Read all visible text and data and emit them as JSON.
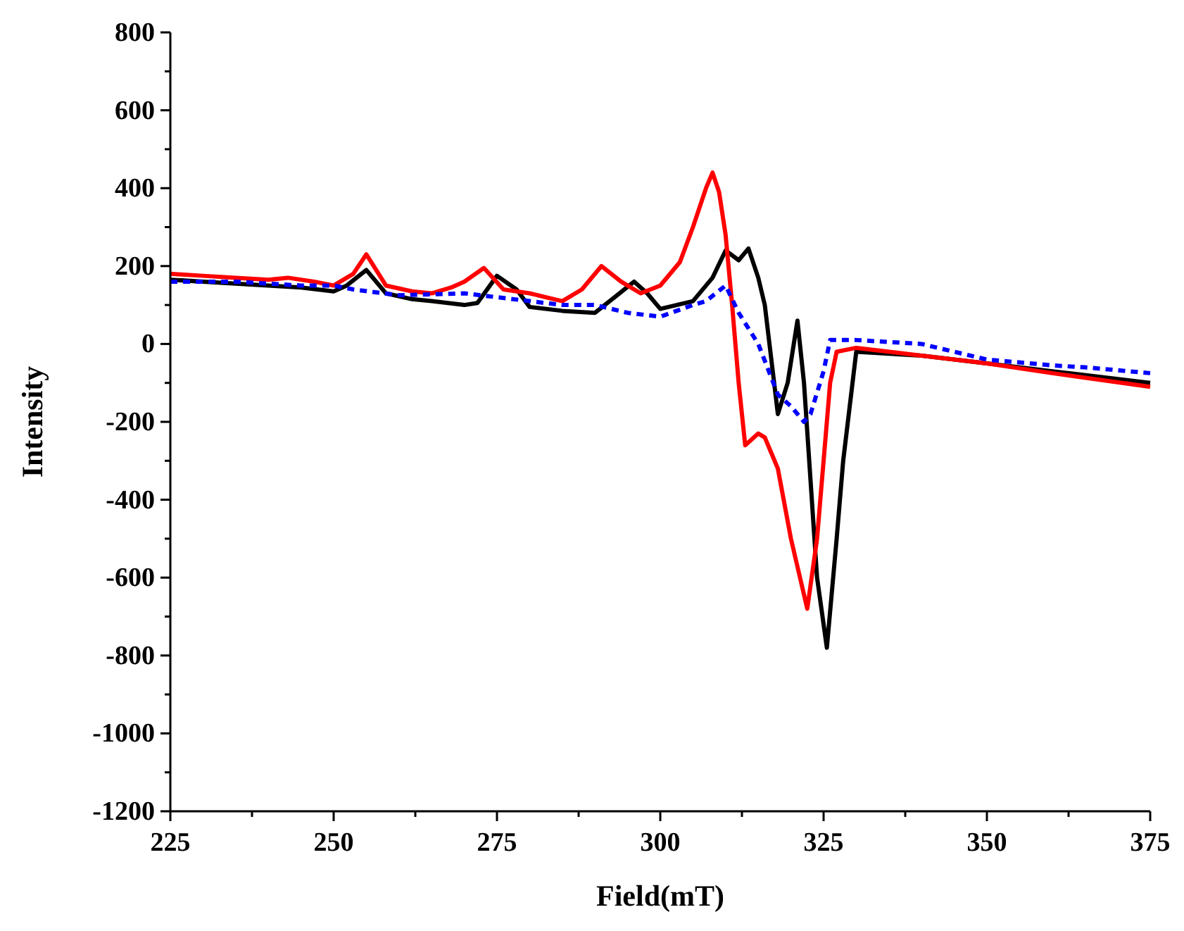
{
  "chart_data": {
    "type": "line",
    "xlabel": "Field(mT)",
    "ylabel": "Intensity",
    "xlim": [
      225,
      375
    ],
    "ylim": [
      -1200,
      800
    ],
    "xticks": [
      225,
      250,
      275,
      300,
      325,
      350,
      375
    ],
    "yticks": [
      -1200,
      -1000,
      -800,
      -600,
      -400,
      -200,
      0,
      200,
      400,
      600,
      800
    ],
    "grid": false,
    "marker": "none",
    "series": [
      {
        "color": "#000000",
        "line_style": "solid",
        "x": [
          225,
          235,
          245,
          250,
          252,
          255,
          258,
          262,
          265,
          270,
          272,
          275,
          278,
          280,
          285,
          290,
          293,
          296,
          298,
          300,
          305,
          308,
          310,
          312,
          313.5,
          315,
          316,
          318,
          319.5,
          321,
          322,
          323,
          324,
          325.5,
          327,
          328,
          330,
          335,
          340,
          350,
          360,
          375
        ],
        "values": [
          165,
          155,
          145,
          135,
          150,
          190,
          130,
          115,
          110,
          100,
          105,
          175,
          140,
          95,
          85,
          80,
          120,
          160,
          130,
          90,
          110,
          170,
          240,
          215,
          245,
          170,
          100,
          -180,
          -100,
          60,
          -100,
          -350,
          -600,
          -780,
          -500,
          -300,
          -20,
          -25,
          -30,
          -50,
          -70,
          -100
        ]
      },
      {
        "color": "#ff0000",
        "line_style": "solid",
        "x": [
          225,
          230,
          235,
          240,
          243,
          247,
          250,
          253,
          255,
          258,
          262,
          265,
          268,
          270,
          273,
          276,
          280,
          285,
          288,
          291,
          294,
          297,
          300,
          303,
          305,
          307,
          308,
          309,
          310,
          311,
          312,
          313,
          315,
          316,
          317,
          318,
          320,
          322.5,
          324,
          325,
          326,
          327,
          330,
          340,
          350,
          360,
          375
        ],
        "values": [
          180,
          175,
          170,
          165,
          170,
          160,
          150,
          180,
          230,
          150,
          135,
          130,
          145,
          160,
          195,
          140,
          130,
          110,
          140,
          200,
          160,
          130,
          150,
          210,
          300,
          400,
          440,
          390,
          280,
          100,
          -100,
          -260,
          -230,
          -240,
          -280,
          -320,
          -500,
          -680,
          -500,
          -300,
          -100,
          -20,
          -10,
          -30,
          -50,
          -75,
          -110
        ]
      },
      {
        "color": "#0000ff",
        "line_style": "dashed",
        "x": [
          225,
          235,
          245,
          250,
          253,
          260,
          270,
          275,
          280,
          285,
          290,
          295,
          300,
          305,
          307,
          310,
          312,
          315,
          318,
          320,
          322,
          323,
          325,
          326,
          330,
          340,
          350,
          360,
          365,
          375
        ],
        "values": [
          160,
          160,
          150,
          150,
          140,
          125,
          130,
          120,
          110,
          100,
          100,
          80,
          70,
          100,
          110,
          150,
          80,
          0,
          -130,
          -160,
          -200,
          -180,
          -70,
          10,
          10,
          0,
          -40,
          -55,
          -60,
          -75
        ]
      }
    ]
  }
}
